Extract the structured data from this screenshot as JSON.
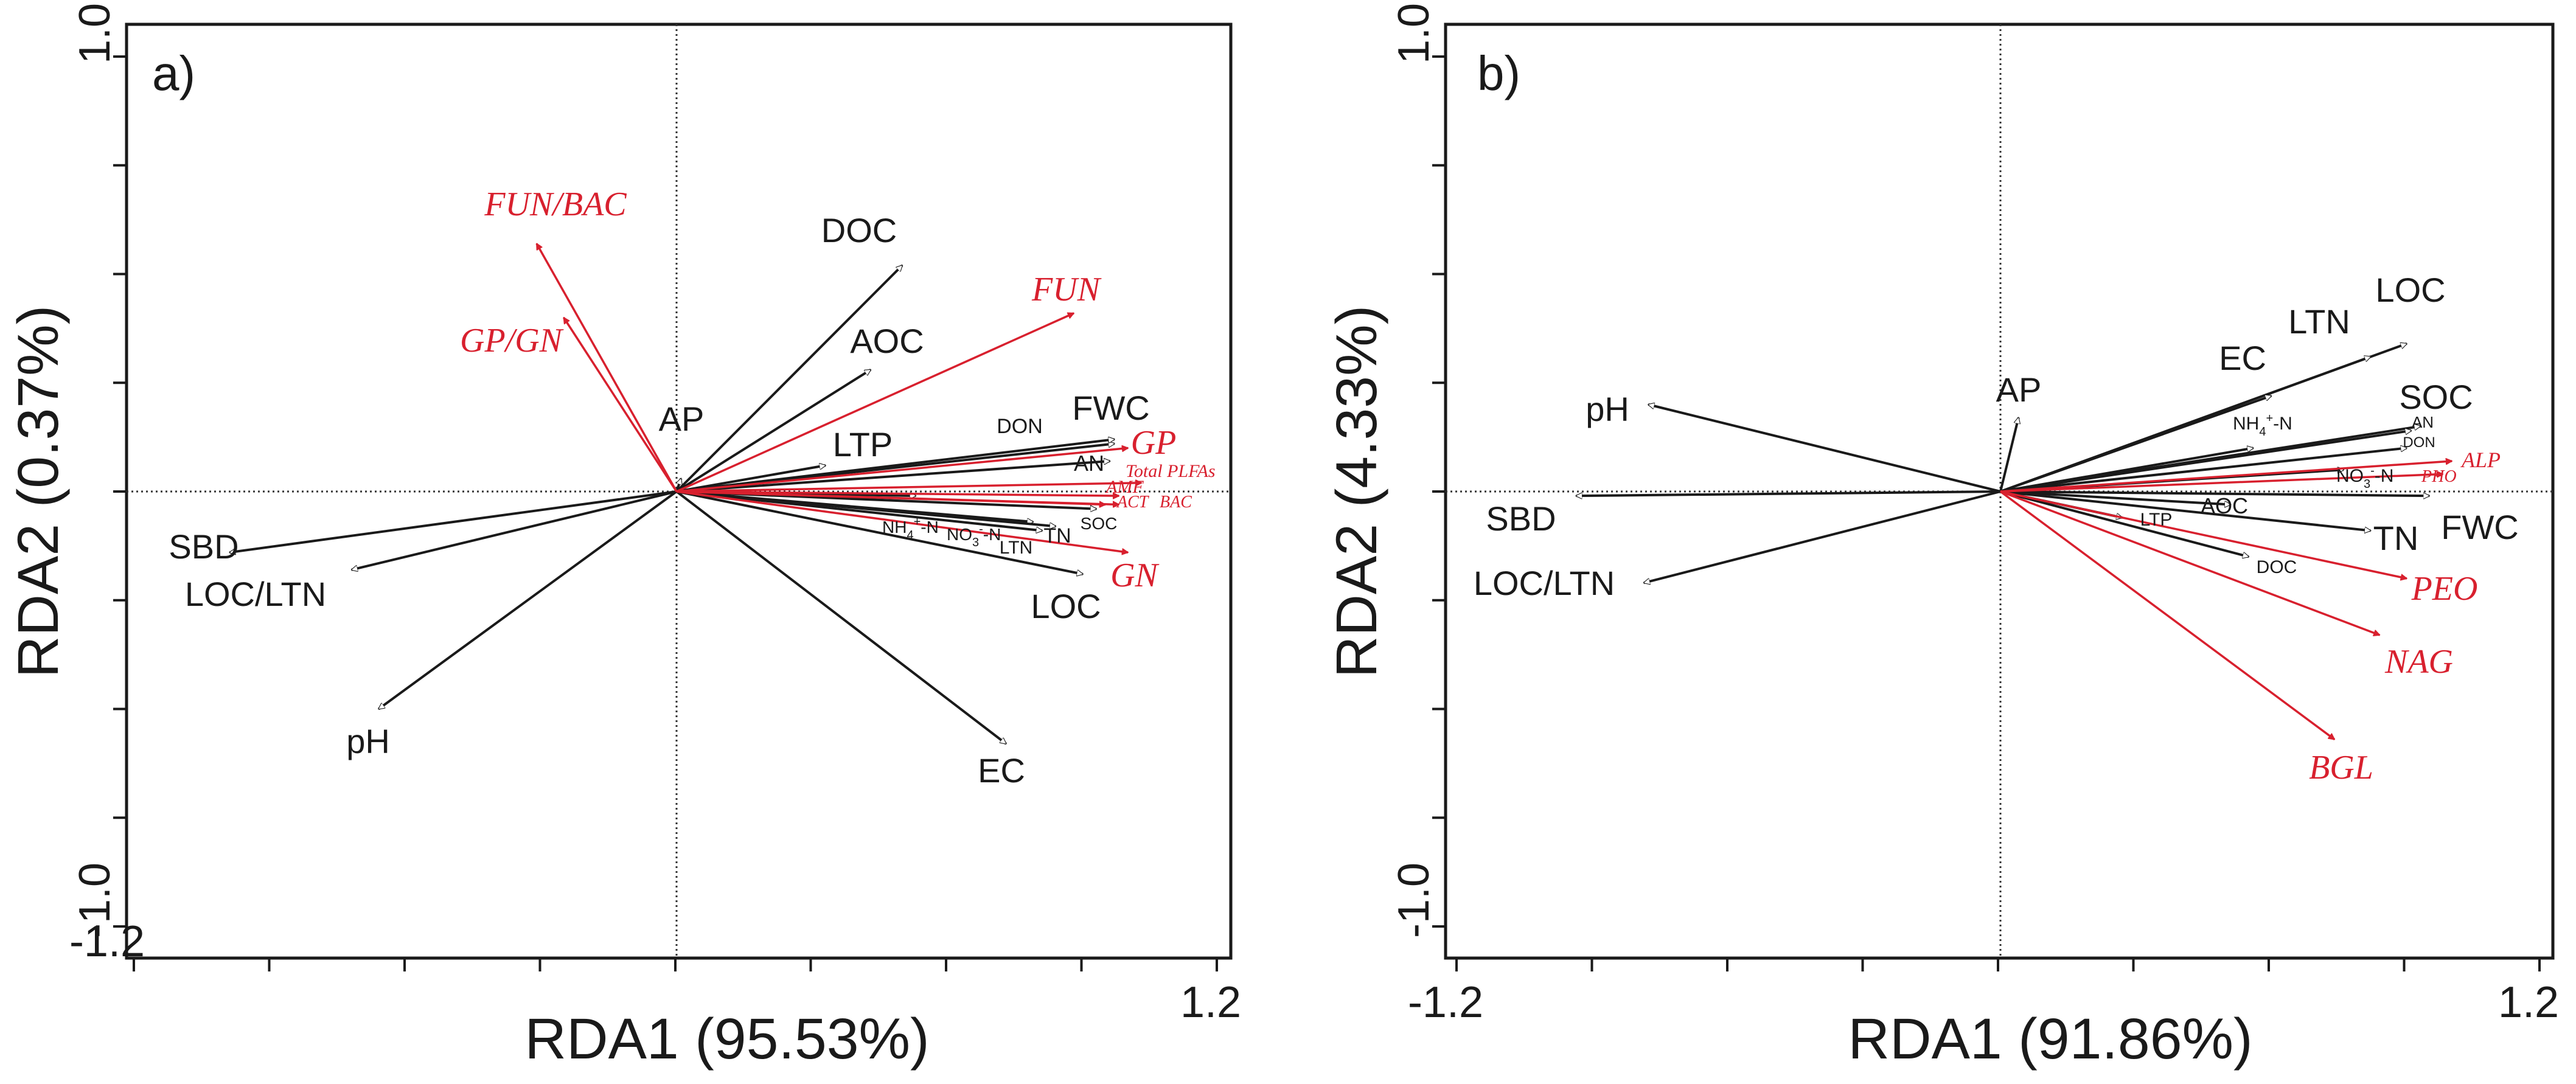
{
  "chart_data": [
    {
      "type": "biplot",
      "panel_label": "a)",
      "xlabel": "RDA1 (95.53%)",
      "ylabel": "RDA2 (0.37%)",
      "xlim": [
        -1.2,
        1.2
      ],
      "ylim": [
        -1.0,
        1.0
      ],
      "x_tick_labels": [
        {
          "value": -1.2,
          "label": "-1.2"
        },
        {
          "value": 1.2,
          "label": "1.2"
        }
      ],
      "y_tick_labels": [
        {
          "value": -1.0,
          "label": "-1.0"
        },
        {
          "value": 1.0,
          "label": "1.0"
        }
      ],
      "black_vectors": [
        {
          "name": "DOC",
          "x": 0.5,
          "y": 0.52
        },
        {
          "name": "AOC",
          "x": 0.43,
          "y": 0.28
        },
        {
          "name": "AP",
          "x": 0.01,
          "y": 0.03
        },
        {
          "name": "LTP",
          "x": 0.33,
          "y": 0.06
        },
        {
          "name": "DON",
          "x": 0.97,
          "y": 0.11
        },
        {
          "name": "FWC",
          "x": 0.97,
          "y": 0.12
        },
        {
          "name": "AN",
          "x": 0.96,
          "y": 0.07
        },
        {
          "name": "NH4+-N",
          "x": 0.53,
          "y": -0.01
        },
        {
          "name": "NO3--N",
          "x": 0.79,
          "y": -0.07
        },
        {
          "name": "LTN",
          "x": 0.81,
          "y": -0.09
        },
        {
          "name": "SOC",
          "x": 0.93,
          "y": -0.04
        },
        {
          "name": "TN",
          "x": 0.84,
          "y": -0.08
        },
        {
          "name": "LOC",
          "x": 0.9,
          "y": -0.19
        },
        {
          "name": "EC",
          "x": 0.73,
          "y": -0.58
        },
        {
          "name": "SBD",
          "x": -0.99,
          "y": -0.14
        },
        {
          "name": "LOC/LTN",
          "x": -0.72,
          "y": -0.18
        },
        {
          "name": "pH",
          "x": -0.66,
          "y": -0.5
        }
      ],
      "red_vectors": [
        {
          "name": "FUN/BAC",
          "x": -0.31,
          "y": 0.57
        },
        {
          "name": "GP/GN",
          "x": -0.25,
          "y": 0.4
        },
        {
          "name": "FUN",
          "x": 0.88,
          "y": 0.41
        },
        {
          "name": "GP",
          "x": 1.0,
          "y": 0.1
        },
        {
          "name": "Total PLFAs",
          "x": 1.03,
          "y": 0.02
        },
        {
          "name": "AMF",
          "x": 0.98,
          "y": -0.01
        },
        {
          "name": "ACT",
          "x": 0.95,
          "y": -0.03
        },
        {
          "name": "BAC",
          "x": 0.98,
          "y": -0.03
        },
        {
          "name": "GN",
          "x": 1.0,
          "y": -0.14
        }
      ],
      "labels": {
        "DOC": "DOC",
        "AOC": "AOC",
        "AP": "AP",
        "LTP": "LTP",
        "DON": "DON",
        "FWC": "FWC",
        "AN": "AN",
        "NH4_main": "NH",
        "NH4_sub": "4",
        "NH4_sup": "+",
        "NH4_tail": "-N",
        "NO3_main": "NO",
        "NO3_sub": "3",
        "NO3_sup": "-",
        "NO3_tail": "-N",
        "LTN": "LTN",
        "SOC": "SOC",
        "TN": "TN",
        "LOC": "LOC",
        "EC": "EC",
        "SBD": "SBD",
        "LOC_LTN": "LOC/LTN",
        "pH": "pH",
        "FUN_BAC": "FUN/BAC",
        "GP_GN": "GP/GN",
        "FUN": "FUN",
        "GP": "GP",
        "Total_PLFAs": "Total PLFAs",
        "AMF": "AMF",
        "ACT": "ACT",
        "BAC": "BAC",
        "GN": "GN"
      }
    },
    {
      "type": "biplot",
      "panel_label": "b)",
      "xlabel": "RDA1 (91.86%)",
      "ylabel": "RDA2 (4.33%)",
      "xlim": [
        -1.2,
        1.2
      ],
      "ylim": [
        -1.0,
        1.0
      ],
      "x_tick_labels": [
        {
          "value": -1.2,
          "label": "-1.2"
        },
        {
          "value": 1.2,
          "label": "1.2"
        }
      ],
      "y_tick_labels": [
        {
          "value": -1.0,
          "label": "-1.0"
        },
        {
          "value": 1.0,
          "label": "1.0"
        }
      ],
      "black_vectors": [
        {
          "name": "LOC",
          "x": 0.9,
          "y": 0.34
        },
        {
          "name": "LTN",
          "x": 0.82,
          "y": 0.31
        },
        {
          "name": "EC",
          "x": 0.6,
          "y": 0.22
        },
        {
          "name": "AP",
          "x": 0.04,
          "y": 0.17
        },
        {
          "name": "SOC",
          "x": 0.93,
          "y": 0.15
        },
        {
          "name": "AN",
          "x": 0.91,
          "y": 0.14
        },
        {
          "name": "NH4+-N",
          "x": 0.56,
          "y": 0.1
        },
        {
          "name": "DON",
          "x": 0.9,
          "y": 0.1
        },
        {
          "name": "NO3--N",
          "x": 0.76,
          "y": 0.05
        },
        {
          "name": "FWC",
          "x": 0.95,
          "y": -0.01
        },
        {
          "name": "AOC",
          "x": 0.51,
          "y": -0.03
        },
        {
          "name": "TN",
          "x": 0.82,
          "y": -0.09
        },
        {
          "name": "LTP",
          "x": 0.27,
          "y": -0.06
        },
        {
          "name": "DOC",
          "x": 0.55,
          "y": -0.15
        },
        {
          "name": "pH",
          "x": -0.78,
          "y": 0.2
        },
        {
          "name": "SBD",
          "x": -0.94,
          "y": -0.01
        },
        {
          "name": "LOC/LTN",
          "x": -0.79,
          "y": -0.21
        }
      ],
      "red_vectors": [
        {
          "name": "ALP",
          "x": 1.0,
          "y": 0.07
        },
        {
          "name": "PHO",
          "x": 0.98,
          "y": 0.04
        },
        {
          "name": "PEO",
          "x": 0.9,
          "y": -0.2
        },
        {
          "name": "NAG",
          "x": 0.84,
          "y": -0.33
        },
        {
          "name": "BGL",
          "x": 0.74,
          "y": -0.57
        }
      ],
      "labels": {
        "LOC": "LOC",
        "LTN": "LTN",
        "EC": "EC",
        "AP": "AP",
        "SOC": "SOC",
        "AN": "AN",
        "NH4_main": "NH",
        "NH4_sub": "4",
        "NH4_sup": "+",
        "NH4_tail": "-N",
        "DON": "DON",
        "NO3_main": "NO",
        "NO3_sub": "3",
        "NO3_sup": "-",
        "NO3_tail": "-N",
        "FWC": "FWC",
        "AOC": "AOC",
        "TN": "TN",
        "LTP": "LTP",
        "DOC": "DOC",
        "pH": "pH",
        "SBD": "SBD",
        "LOC_LTN": "LOC/LTN",
        "ALP": "ALP",
        "PHO": "PHO",
        "PEO": "PEO",
        "NAG": "NAG",
        "BGL": "BGL"
      }
    }
  ]
}
